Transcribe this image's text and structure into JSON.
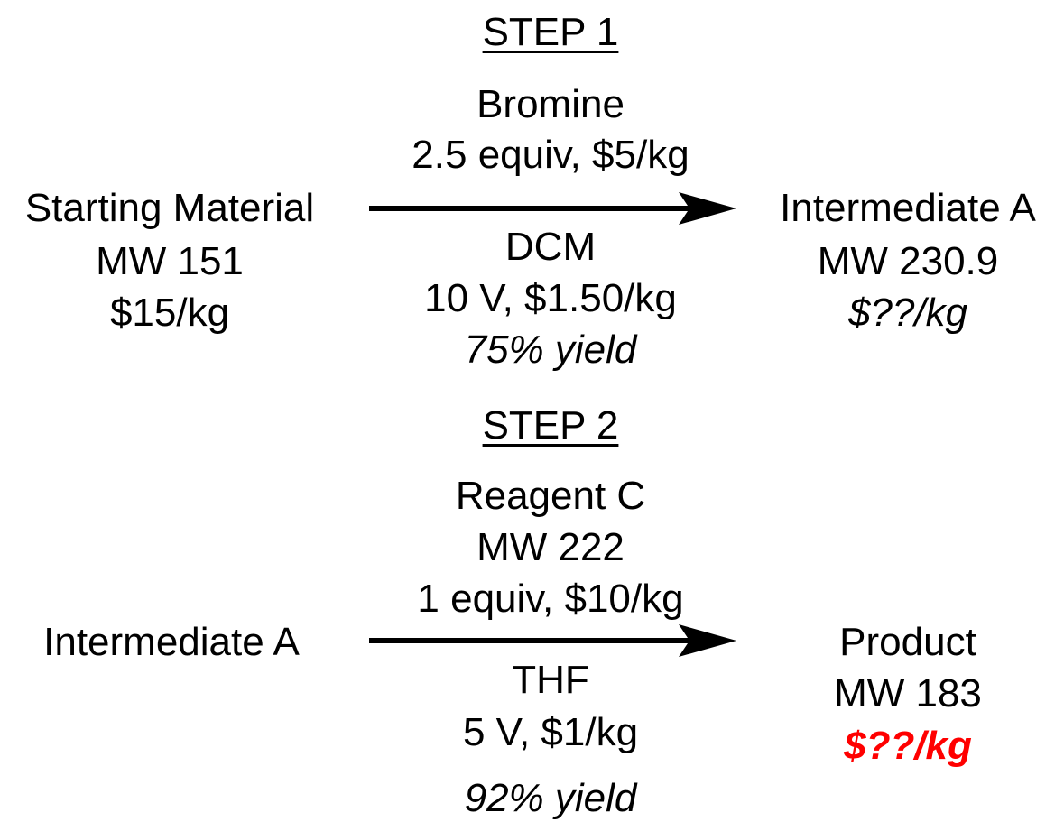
{
  "step1": {
    "heading": "STEP 1",
    "reagent_name": "Bromine",
    "reagent_detail": "2.5 equiv, $5/kg",
    "solvent_name": "DCM",
    "solvent_detail": "10 V, $1.50/kg",
    "yield": "75% yield",
    "start": {
      "name": "Starting Material",
      "mw": "MW 151",
      "price": "$15/kg"
    },
    "end": {
      "name": "Intermediate A",
      "mw": "MW 230.9",
      "price": "$??/kg"
    }
  },
  "step2": {
    "heading": "STEP 2",
    "reagent_name": "Reagent C",
    "reagent_mw": "MW 222",
    "reagent_detail": "1 equiv, $10/kg",
    "solvent_name": "THF",
    "solvent_detail": "5 V, $1/kg",
    "yield": "92% yield",
    "start": {
      "name": "Intermediate A"
    },
    "end": {
      "name": "Product",
      "mw": "MW 183",
      "price": "$??/kg"
    }
  },
  "colors": {
    "text": "#000000",
    "highlight": "#ff0000"
  }
}
